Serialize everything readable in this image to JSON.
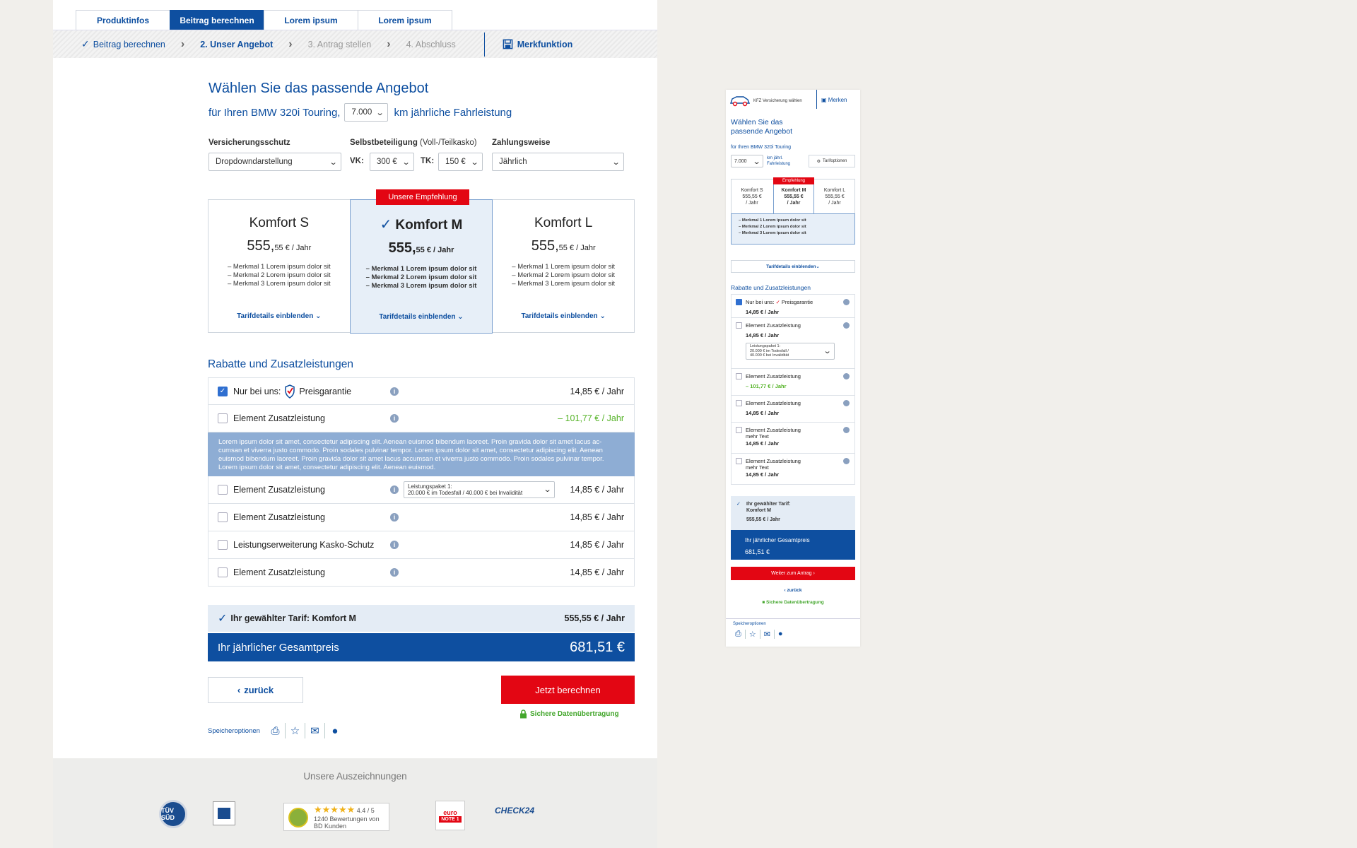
{
  "tabs": [
    "Produktinfos",
    "Beitrag berechnen",
    "Lorem ipsum",
    "Lorem ipsum"
  ],
  "steps": {
    "s1": "Beitrag berechnen",
    "s2": "2. Unser Angebot",
    "s3": "3. Antrag stellen",
    "s4": "4. Abschluss",
    "merk": "Merkfunktion"
  },
  "heading": "Wählen Sie das passende Angebot",
  "sub": {
    "pre": "für Ihren BMW 320i Touring,",
    "km": "7.000",
    "post": "km jährliche Fahrleistung"
  },
  "filters": {
    "vs_label": "Versicherungsschutz",
    "vs_value": "Dropdowndarstellung",
    "sb_label": "Selbstbeteiligung",
    "sb_label2": "(Voll-/Teilkasko)",
    "vk_label": "VK:",
    "vk_value": "300 €",
    "tk_label": "TK:",
    "tk_value": "150 €",
    "zw_label": "Zahlungsweise",
    "zw_value": "Jährlich"
  },
  "badge": "Unsere Empfehlung",
  "cards": [
    {
      "name": "Komfort S",
      "price": "555,",
      "cents": "55 € / Jahr",
      "f1": "– Merkmal 1 Lorem ipsum dolor sit",
      "f2": "– Merkmal 2 Lorem ipsum dolor sit",
      "f3": "– Merkmal 3 Lorem ipsum dolor sit",
      "details": "Tarifdetails einblenden"
    },
    {
      "name": "Komfort M",
      "price": "555,",
      "cents": "55 € / Jahr",
      "f1": "– Merkmal 1 Lorem ipsum dolor sit",
      "f2": "– Merkmal 2 Lorem ipsum dolor sit",
      "f3": "– Merkmal 3 Lorem ipsum dolor sit",
      "details": "Tarifdetails einblenden"
    },
    {
      "name": "Komfort L",
      "price": "555,",
      "cents": "55 € / Jahr",
      "f1": "– Merkmal 1 Lorem ipsum dolor sit",
      "f2": "– Merkmal 2 Lorem ipsum dolor sit",
      "f3": "– Merkmal 3 Lorem ipsum dolor sit",
      "details": "Tarifdetails einblenden"
    }
  ],
  "rabatte_title": "Rabatte und Zusatzleistungen",
  "rows": [
    {
      "pre": "Nur bei uns:",
      "label": "Preisgarantie",
      "price": "14,85 € / Jahr"
    },
    {
      "label": "Element Zusatzleistung",
      "price": "– 101,77 € / Jahr"
    },
    {
      "label": "Element Zusatzleistung",
      "price": "14,85 € / Jahr",
      "dd1": "Leistungspaket 1:",
      "dd2": "20.000 € im Todesfall / 40.000 € bei Invalidität"
    },
    {
      "label": "Element Zusatzleistung",
      "price": "14,85 € / Jahr"
    },
    {
      "label": "Leistungserweiterung Kasko-Schutz",
      "price": "14,85 € / Jahr"
    },
    {
      "label": "Element Zusatzleistung",
      "price": "14,85 € / Jahr"
    }
  ],
  "desc": "Lorem ipsum dolor sit amet, consectetur adipiscing elit. Aenean euismod bibendum laoreet. Proin gravida dolor sit amet lacus ac-cumsan et viverra justo commodo. Proin sodales pulvinar tempor. Lorem ipsum dolor sit amet, consectetur adipiscing elit. Aenean euismod bibendum laoreet. Proin gravida dolor sit amet lacus accumsan et viverra justo commodo. Proin sodales pulvinar tempor. Lorem ipsum dolor sit amet, consectetur adipiscing elit. Aenean euismod.",
  "tarif": {
    "label": "Ihr gewählter Tarif: Komfort M",
    "price": "555,55 € / Jahr"
  },
  "gesamt": {
    "label": "Ihr jährlicher Gesamtpreis",
    "price": "681,51 €"
  },
  "back": "zurück",
  "calc": "Jetzt berechnen",
  "secure": "Sichere Datenübertragung",
  "speicher": "Speicheroptionen",
  "awards_title": "Unsere Auszeichnungen",
  "awards": {
    "tuv": "TÜV SÜD",
    "rating": "4.4 / 5",
    "reviews": "1240 Bewertungen von BD Kunden",
    "euro": "euro",
    "note": "NOTE 1",
    "check": "CHECK24"
  },
  "mobile": {
    "head": "KFZ Versicherung wählen",
    "merken": "Merken",
    "t1": "Wählen Sie das",
    "t2": "passende Angebot",
    "car": "für Ihren BMW 320i Touring",
    "km": "7.000",
    "kmlabel1": "km jährl.",
    "kmlabel2": "Fahrleistung",
    "tarifopt": "Tarifoptionen",
    "badge": "Empfehlung",
    "cards": [
      {
        "n": "Komfort S",
        "p": "555,55 €",
        "u": "/ Jahr"
      },
      {
        "n": "Komfort M",
        "p": "555,55 €",
        "u": "/ Jahr"
      },
      {
        "n": "Komfort L",
        "p": "555,55 €",
        "u": "/ Jahr"
      }
    ],
    "f1": "– Merkmal 1 Lorem ipsum dolor sit",
    "f2": "– Merkmal 2 Lorem ipsum dolor sit",
    "f3": "– Merkmal 3 Lorem ipsum dolor sit",
    "details": "Tarifdetails einblenden",
    "rabatte": "Rabatte und Zusatzleistungen",
    "r1a": "Nur bei uns:",
    "r1b": "Preisgarantie",
    "price": "14,85 € / Jahr",
    "el": "Element Zusatzleistung",
    "dd1": "Leistungspaket 1:",
    "dd2": "20.000 € im Todesfall /",
    "dd3": "40.000 € bei Invalidität",
    "neg": "– 101,77 € / Jahr",
    "more": "mehr Text",
    "tarif1": "Ihr gewählter Tarif:",
    "tarif2": "Komfort M",
    "tarifp": "555,55 € / Jahr",
    "gp1": "Ihr jährlicher Gesamtpreis",
    "gp2": "681,51 €",
    "weiter": "Weiter zum Antrag",
    "back": "zurück",
    "secure": "Sichere Datenübertragung",
    "speicher": "Speicheroptionen"
  },
  "colors": {
    "blue": "#0e4fa0",
    "red": "#e30613",
    "green": "#55b327",
    "light": "#e4ecf5"
  }
}
